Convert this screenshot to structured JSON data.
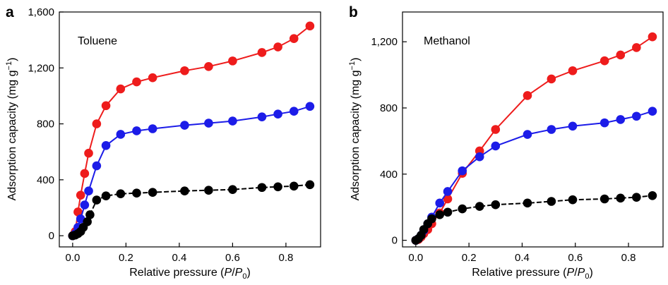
{
  "chart_data": [
    {
      "panel": "a",
      "type": "line",
      "annotation": "Toluene",
      "xlabel": {
        "main": "Relative pressure (",
        "i1": "P",
        "slash": "/",
        "i2": "P",
        "sub": "0",
        "close": ")"
      },
      "ylabel": {
        "main": "Adsorption capacity (mg g",
        "sup": "−1",
        "close": ")"
      },
      "xlim": [
        -0.05,
        0.93
      ],
      "ylim": [
        -80,
        1600
      ],
      "xticks": [
        0.0,
        0.2,
        0.4,
        0.6,
        0.8
      ],
      "xtick_labels": [
        "0.0",
        "0.2",
        "0.4",
        "0.6",
        "0.8"
      ],
      "yticks": [
        0,
        400,
        800,
        1200,
        1600
      ],
      "ytick_labels": [
        "0",
        "400",
        "800",
        "1,200",
        "1,600"
      ],
      "series": [
        {
          "color": "#ee1c1c",
          "x": [
            0.0,
            0.01,
            0.02,
            0.03,
            0.045,
            0.06,
            0.09,
            0.125,
            0.18,
            0.24,
            0.3,
            0.42,
            0.51,
            0.6,
            0.71,
            0.77,
            0.83,
            0.89
          ],
          "y": [
            0,
            30,
            170,
            290,
            445,
            590,
            800,
            930,
            1050,
            1100,
            1130,
            1180,
            1210,
            1250,
            1310,
            1350,
            1410,
            1500
          ]
        },
        {
          "color": "#1c1ce8",
          "x": [
            0.0,
            0.01,
            0.02,
            0.03,
            0.045,
            0.06,
            0.09,
            0.125,
            0.18,
            0.24,
            0.3,
            0.42,
            0.51,
            0.6,
            0.71,
            0.77,
            0.83,
            0.89
          ],
          "y": [
            0,
            15,
            60,
            120,
            220,
            320,
            500,
            645,
            725,
            750,
            765,
            790,
            805,
            820,
            850,
            870,
            890,
            925
          ]
        },
        {
          "color": "#000000",
          "x": [
            0.0,
            0.01,
            0.02,
            0.03,
            0.04,
            0.055,
            0.065,
            0.09,
            0.125,
            0.18,
            0.24,
            0.3,
            0.42,
            0.51,
            0.6,
            0.71,
            0.77,
            0.83,
            0.89
          ],
          "y": [
            0,
            5,
            15,
            30,
            60,
            100,
            150,
            255,
            285,
            300,
            305,
            310,
            320,
            325,
            330,
            345,
            350,
            355,
            365
          ]
        }
      ]
    },
    {
      "panel": "b",
      "type": "line",
      "annotation": "Methanol",
      "xlabel": {
        "main": "Relative pressure (",
        "i1": "P",
        "slash": "/",
        "i2": "P",
        "sub": "0",
        "close": ")"
      },
      "ylabel": {
        "main": "Adsorption capacity (mg g",
        "sup": "−1",
        "close": ")"
      },
      "xlim": [
        -0.05,
        0.93
      ],
      "ylim": [
        -40,
        1380
      ],
      "xticks": [
        0.0,
        0.2,
        0.4,
        0.6,
        0.8
      ],
      "xtick_labels": [
        "0.0",
        "0.2",
        "0.4",
        "0.6",
        "0.8"
      ],
      "yticks": [
        0,
        400,
        800,
        1200
      ],
      "ytick_labels": [
        "0",
        "400",
        "800",
        "1,200"
      ],
      "series": [
        {
          "color": "#ee1c1c",
          "x": [
            0.0,
            0.01,
            0.02,
            0.03,
            0.045,
            0.06,
            0.09,
            0.12,
            0.175,
            0.24,
            0.3,
            0.42,
            0.51,
            0.59,
            0.71,
            0.77,
            0.83,
            0.89
          ],
          "y": [
            0,
            5,
            20,
            40,
            65,
            100,
            165,
            250,
            405,
            540,
            670,
            875,
            975,
            1025,
            1085,
            1120,
            1165,
            1230
          ]
        },
        {
          "color": "#1c1ce8",
          "x": [
            0.0,
            0.01,
            0.02,
            0.03,
            0.045,
            0.06,
            0.09,
            0.12,
            0.175,
            0.24,
            0.3,
            0.42,
            0.51,
            0.59,
            0.71,
            0.77,
            0.83,
            0.89
          ],
          "y": [
            0,
            10,
            30,
            60,
            100,
            140,
            225,
            295,
            420,
            505,
            570,
            640,
            670,
            690,
            710,
            730,
            750,
            780
          ]
        },
        {
          "color": "#000000",
          "x": [
            0.0,
            0.01,
            0.02,
            0.03,
            0.045,
            0.06,
            0.09,
            0.12,
            0.175,
            0.24,
            0.3,
            0.42,
            0.51,
            0.59,
            0.71,
            0.77,
            0.83,
            0.89
          ],
          "y": [
            0,
            10,
            30,
            65,
            100,
            130,
            155,
            170,
            190,
            205,
            215,
            225,
            235,
            245,
            250,
            255,
            260,
            270
          ]
        }
      ]
    }
  ]
}
